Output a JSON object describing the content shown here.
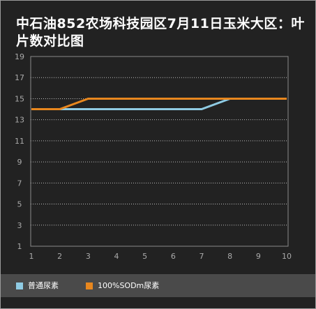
{
  "chart_data": {
    "type": "line",
    "title": "中石油852农场科技园区7月11日玉米大区：叶片数对比图",
    "categories": [
      "1",
      "2",
      "3",
      "4",
      "5",
      "6",
      "7",
      "8",
      "9",
      "10"
    ],
    "series": [
      {
        "name": "普通尿素",
        "values": [
          14,
          14,
          14,
          14,
          14,
          14,
          14,
          15,
          15,
          15
        ],
        "color": "#8fcbe3"
      },
      {
        "name": "100%SODm尿素",
        "values": [
          14,
          14,
          15,
          15,
          15,
          15,
          15,
          15,
          15,
          15
        ],
        "color": "#e8871e"
      }
    ],
    "y_ticks": [
      1,
      3,
      5,
      7,
      9,
      11,
      13,
      15,
      17,
      19
    ],
    "ylim": [
      1,
      19
    ],
    "grid": true,
    "legend": "bottom-left",
    "background": "#222222",
    "legend_background": "#4a4a4a",
    "grid_color": "#bbbbbb",
    "tick_label_color": "#aaaaaa"
  }
}
